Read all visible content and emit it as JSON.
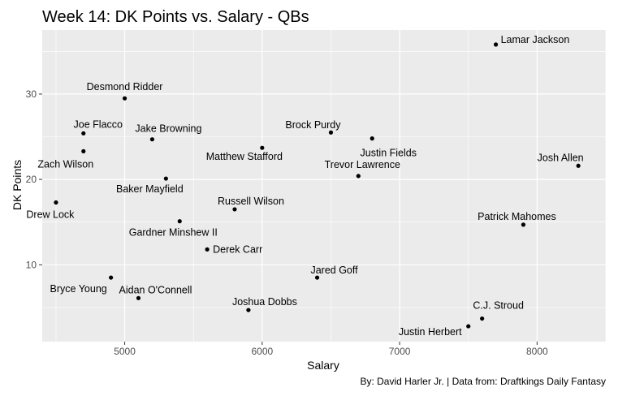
{
  "chart_data": {
    "type": "scatter",
    "title": "Week 14: DK Points vs. Salary - QBs",
    "xlabel": "Salary",
    "ylabel": "DK Points",
    "caption": "By: David Harler Jr. | Data from: Draftkings Daily Fantasy",
    "xlim": [
      4400,
      8500
    ],
    "ylim": [
      1,
      37.5
    ],
    "x_ticks": [
      5000,
      6000,
      7000,
      8000
    ],
    "y_ticks": [
      10,
      20,
      30
    ],
    "grid": true,
    "background": "#ebebeb",
    "grid_color": "#ffffff",
    "point_color": "#000000",
    "points": [
      {
        "label": "Lamar Jackson",
        "x": 7700,
        "y": 35.8
      },
      {
        "label": "Desmond Ridder",
        "x": 5000,
        "y": 29.5
      },
      {
        "label": "Joe Flacco",
        "x": 4700,
        "y": 25.4
      },
      {
        "label": "Jake Browning",
        "x": 5200,
        "y": 24.7
      },
      {
        "label": "Zach Wilson",
        "x": 4700,
        "y": 23.3
      },
      {
        "label": "Brock Purdy",
        "x": 6500,
        "y": 25.5
      },
      {
        "label": "Justin Fields",
        "x": 6800,
        "y": 24.8
      },
      {
        "label": "Matthew Stafford",
        "x": 6000,
        "y": 23.7
      },
      {
        "label": "Josh Allen",
        "x": 8300,
        "y": 21.6
      },
      {
        "label": "Trevor Lawrence",
        "x": 6700,
        "y": 20.4
      },
      {
        "label": "Baker Mayfield",
        "x": 5300,
        "y": 20.1
      },
      {
        "label": "Drew Lock",
        "x": 4500,
        "y": 17.3
      },
      {
        "label": "Russell Wilson",
        "x": 5800,
        "y": 16.5
      },
      {
        "label": "Gardner Minshew II",
        "x": 5400,
        "y": 15.1
      },
      {
        "label": "Patrick Mahomes",
        "x": 7900,
        "y": 14.7
      },
      {
        "label": "Derek Carr",
        "x": 5600,
        "y": 11.8
      },
      {
        "label": "Jared Goff",
        "x": 6400,
        "y": 8.5
      },
      {
        "label": "Bryce Young",
        "x": 4900,
        "y": 8.5
      },
      {
        "label": "Aidan O'Connell",
        "x": 5100,
        "y": 6.1
      },
      {
        "label": "Joshua Dobbs",
        "x": 5900,
        "y": 4.7
      },
      {
        "label": "C.J. Stroud",
        "x": 7600,
        "y": 3.7
      },
      {
        "label": "Justin Herbert",
        "x": 7500,
        "y": 2.8
      }
    ]
  }
}
